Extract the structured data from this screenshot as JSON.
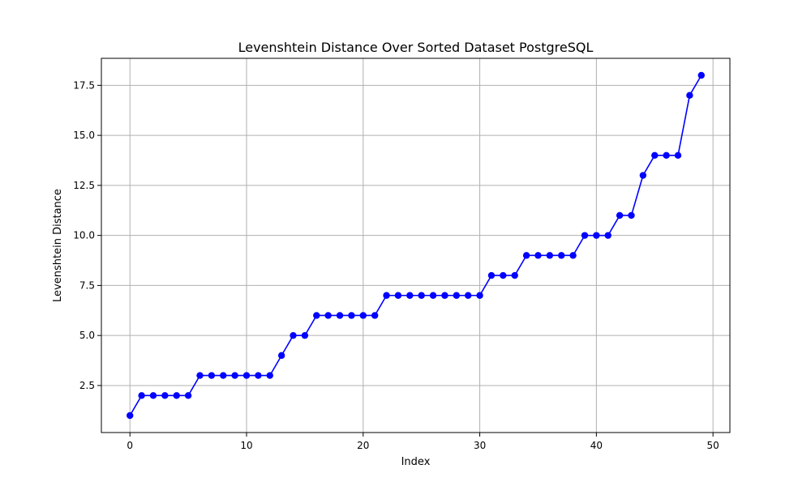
{
  "chart_data": {
    "type": "line",
    "title": "Levenshtein Distance Over Sorted Dataset PostgreSQL",
    "xlabel": "Index",
    "ylabel": "Levenshtein Distance",
    "xlim": [
      -2.45,
      51.45
    ],
    "ylim": [
      0.15,
      18.85
    ],
    "x_ticks": [
      0,
      10,
      20,
      30,
      40,
      50
    ],
    "x_tick_labels": [
      "0",
      "10",
      "20",
      "30",
      "40",
      "50"
    ],
    "y_ticks": [
      2.5,
      5.0,
      7.5,
      10.0,
      12.5,
      15.0,
      17.5
    ],
    "y_tick_labels": [
      "2.5",
      "5.0",
      "7.5",
      "10.0",
      "12.5",
      "15.0",
      "17.5"
    ],
    "grid": true,
    "series": [
      {
        "color": "#0000ff",
        "marker": "circle",
        "x": [
          0,
          1,
          2,
          3,
          4,
          5,
          6,
          7,
          8,
          9,
          10,
          11,
          12,
          13,
          14,
          15,
          16,
          17,
          18,
          19,
          20,
          21,
          22,
          23,
          24,
          25,
          26,
          27,
          28,
          29,
          30,
          31,
          32,
          33,
          34,
          35,
          36,
          37,
          38,
          39,
          40,
          41,
          42,
          43,
          44,
          45,
          46,
          47,
          48,
          49
        ],
        "values": [
          1,
          2,
          2,
          2,
          2,
          2,
          3,
          3,
          3,
          3,
          3,
          3,
          3,
          4,
          5,
          5,
          6,
          6,
          6,
          6,
          6,
          6,
          7,
          7,
          7,
          7,
          7,
          7,
          7,
          7,
          7,
          8,
          8,
          8,
          9,
          9,
          9,
          9,
          9,
          10,
          10,
          10,
          11,
          11,
          13,
          14,
          14,
          14,
          17,
          18
        ]
      }
    ]
  }
}
